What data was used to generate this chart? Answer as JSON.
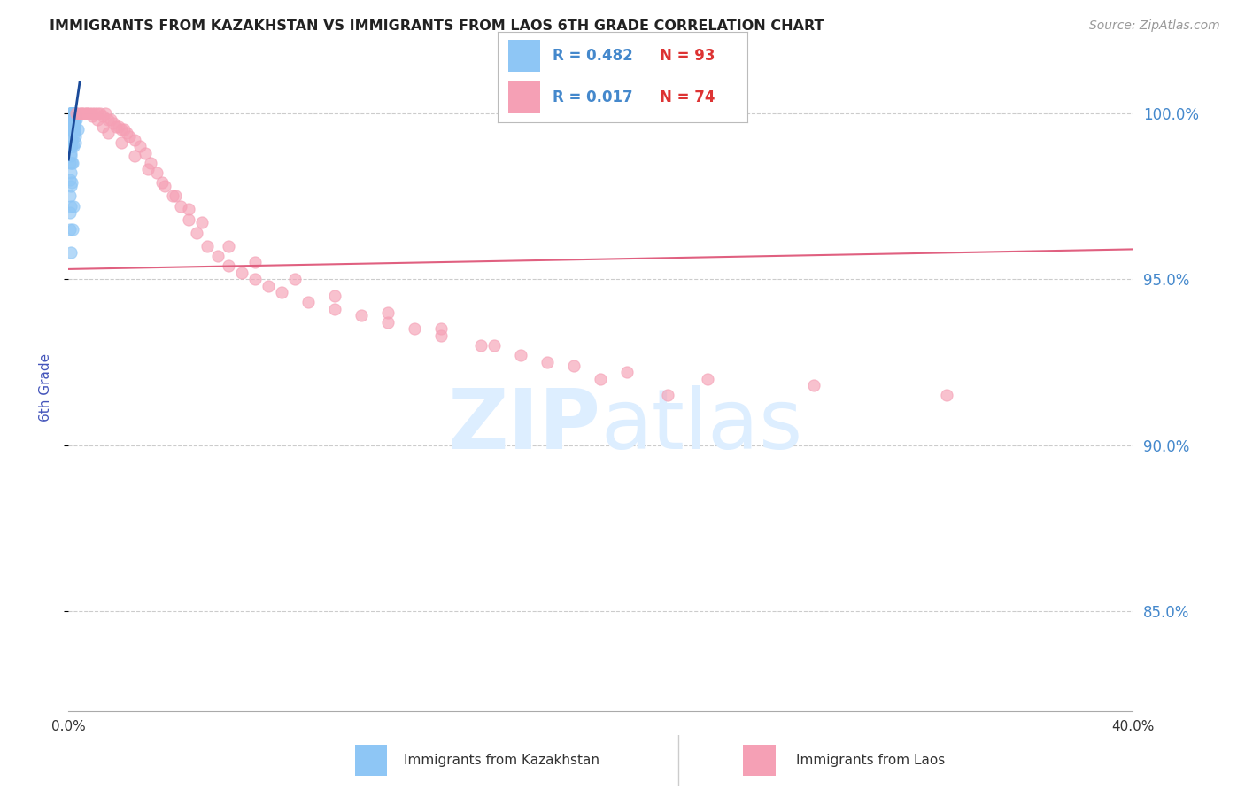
{
  "title": "IMMIGRANTS FROM KAZAKHSTAN VS IMMIGRANTS FROM LAOS 6TH GRADE CORRELATION CHART",
  "source": "Source: ZipAtlas.com",
  "ylabel": "6th Grade",
  "xmin": 0.0,
  "xmax": 40.0,
  "ymin": 82.0,
  "ymax": 101.5,
  "yticks": [
    85.0,
    90.0,
    95.0,
    100.0
  ],
  "ytick_labels": [
    "85.0%",
    "90.0%",
    "95.0%",
    "100.0%"
  ],
  "xticks": [
    0.0,
    8.0,
    16.0,
    24.0,
    32.0,
    40.0
  ],
  "xtick_labels": [
    "0.0%",
    "",
    "",
    "",
    "",
    "40.0%"
  ],
  "legend_R1": "R = 0.482",
  "legend_N1": "N = 93",
  "legend_R2": "R = 0.017",
  "legend_N2": "N = 74",
  "color_kazakhstan": "#8ec6f5",
  "color_laos": "#f5a0b5",
  "color_trend_kazakhstan": "#1a4a99",
  "color_trend_laos": "#e06080",
  "color_axis_label": "#4455bb",
  "color_right_ticks": "#4488cc",
  "watermark_color": "#ddeeff",
  "kazakhstan_x": [
    0.05,
    0.08,
    0.1,
    0.12,
    0.12,
    0.13,
    0.14,
    0.15,
    0.15,
    0.16,
    0.06,
    0.09,
    0.11,
    0.13,
    0.14,
    0.16,
    0.17,
    0.18,
    0.19,
    0.2,
    0.07,
    0.1,
    0.12,
    0.14,
    0.15,
    0.17,
    0.18,
    0.2,
    0.21,
    0.22,
    0.05,
    0.08,
    0.1,
    0.11,
    0.13,
    0.15,
    0.16,
    0.18,
    0.2,
    0.22,
    0.06,
    0.09,
    0.11,
    0.13,
    0.14,
    0.16,
    0.18,
    0.19,
    0.21,
    0.23,
    0.07,
    0.1,
    0.12,
    0.14,
    0.16,
    0.17,
    0.19,
    0.21,
    0.22,
    0.24,
    0.05,
    0.08,
    0.1,
    0.12,
    0.14,
    0.15,
    0.17,
    0.19,
    0.2,
    0.22,
    0.06,
    0.09,
    0.11,
    0.13,
    0.15,
    0.17,
    0.19,
    0.21,
    0.23,
    0.25,
    0.07,
    0.1,
    0.13,
    0.15,
    0.18,
    0.21,
    0.24,
    0.27,
    0.3,
    0.35,
    0.1,
    0.15,
    0.2
  ],
  "kazakhstan_y": [
    100.0,
    100.0,
    100.0,
    100.0,
    100.0,
    100.0,
    100.0,
    100.0,
    100.0,
    100.0,
    100.0,
    100.0,
    100.0,
    100.0,
    100.0,
    100.0,
    100.0,
    100.0,
    100.0,
    100.0,
    99.5,
    99.8,
    100.0,
    100.0,
    100.0,
    100.0,
    100.0,
    100.0,
    100.0,
    99.8,
    99.0,
    99.5,
    99.7,
    100.0,
    100.0,
    100.0,
    100.0,
    100.0,
    100.0,
    99.5,
    98.5,
    99.0,
    99.5,
    99.8,
    100.0,
    100.0,
    100.0,
    100.0,
    99.8,
    99.5,
    98.0,
    98.8,
    99.2,
    99.6,
    100.0,
    100.0,
    100.0,
    100.0,
    99.7,
    99.3,
    97.5,
    98.2,
    98.7,
    99.2,
    99.6,
    100.0,
    100.0,
    100.0,
    99.8,
    99.4,
    97.0,
    97.8,
    98.5,
    99.0,
    99.5,
    100.0,
    100.0,
    100.0,
    99.6,
    99.1,
    96.5,
    97.2,
    97.9,
    98.5,
    99.0,
    99.5,
    100.0,
    100.0,
    99.8,
    99.5,
    95.8,
    96.5,
    97.2
  ],
  "laos_x": [
    0.4,
    0.6,
    0.8,
    1.0,
    1.2,
    1.4,
    1.6,
    1.8,
    2.0,
    2.2,
    0.5,
    0.7,
    0.9,
    1.1,
    1.3,
    1.5,
    1.7,
    1.9,
    2.1,
    2.3,
    2.5,
    2.7,
    2.9,
    3.1,
    3.3,
    3.6,
    3.9,
    4.2,
    4.5,
    4.8,
    5.2,
    5.6,
    6.0,
    6.5,
    7.0,
    7.5,
    8.0,
    9.0,
    10.0,
    11.0,
    12.0,
    13.0,
    14.0,
    15.5,
    17.0,
    19.0,
    21.0,
    24.0,
    28.0,
    33.0,
    0.3,
    0.5,
    0.7,
    0.9,
    1.1,
    1.3,
    1.5,
    2.0,
    2.5,
    3.0,
    3.5,
    4.0,
    4.5,
    5.0,
    6.0,
    7.0,
    8.5,
    10.0,
    12.0,
    14.0,
    16.0,
    18.0,
    20.0,
    22.5
  ],
  "laos_y": [
    100.0,
    100.0,
    100.0,
    100.0,
    100.0,
    100.0,
    99.8,
    99.6,
    99.5,
    99.4,
    100.0,
    100.0,
    100.0,
    100.0,
    99.9,
    99.8,
    99.7,
    99.6,
    99.5,
    99.3,
    99.2,
    99.0,
    98.8,
    98.5,
    98.2,
    97.8,
    97.5,
    97.2,
    96.8,
    96.4,
    96.0,
    95.7,
    95.4,
    95.2,
    95.0,
    94.8,
    94.6,
    94.3,
    94.1,
    93.9,
    93.7,
    93.5,
    93.3,
    93.0,
    92.7,
    92.4,
    92.2,
    92.0,
    91.8,
    91.5,
    100.0,
    100.0,
    100.0,
    99.9,
    99.8,
    99.6,
    99.4,
    99.1,
    98.7,
    98.3,
    97.9,
    97.5,
    97.1,
    96.7,
    96.0,
    95.5,
    95.0,
    94.5,
    94.0,
    93.5,
    93.0,
    92.5,
    92.0,
    91.5
  ],
  "laos_trend_x": [
    0.0,
    40.0
  ],
  "laos_trend_y": [
    95.3,
    95.9
  ]
}
